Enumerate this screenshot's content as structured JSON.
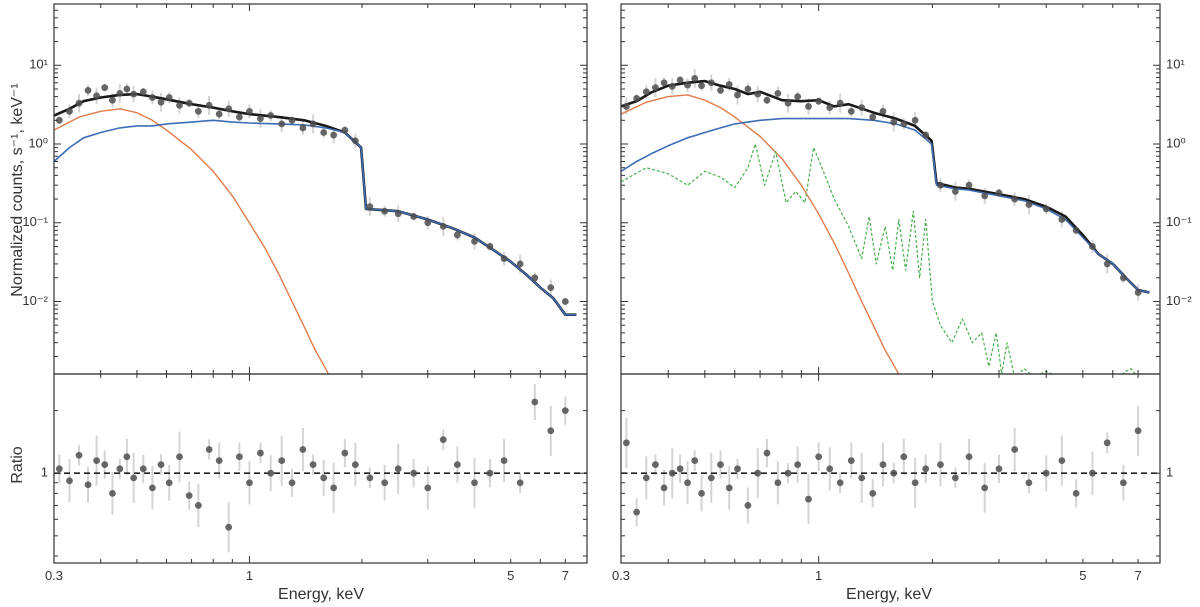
{
  "figure": {
    "ylabel_main": "Normalized counts, s⁻¹, keV⁻¹",
    "ylabel_ratio": "Ratio",
    "xlabel": "Energy, keV"
  },
  "colors": {
    "data_points": "#4d4d4d",
    "error_bars": "#d4d4d4",
    "total_model": "#1a1a1a",
    "soft_component": "#e07b4a",
    "hard_component": "#3f6db5",
    "line_component": "#4caf50",
    "reference_line": "#222222"
  },
  "chart_data": [
    {
      "type": "scatter",
      "panel": "left-spectrum",
      "xscale": "log",
      "yscale": "log",
      "xlim": [
        0.3,
        8.0
      ],
      "ylim": [
        0.0012,
        60
      ],
      "yticks": [
        0.01,
        0.1,
        1,
        10
      ],
      "ytick_labels": [
        "10⁻²",
        "10⁻¹",
        "10⁰",
        "10¹"
      ],
      "ylabel": "Normalized counts, s⁻¹, keV⁻¹",
      "series": [
        {
          "name": "total model",
          "kind": "line",
          "role": "total",
          "x": [
            0.3,
            0.33,
            0.36,
            0.4,
            0.45,
            0.5,
            0.55,
            0.6,
            0.7,
            0.8,
            0.9,
            1.0,
            1.2,
            1.4,
            1.6,
            1.8,
            1.99,
            2.05,
            2.5,
            3.0,
            3.5,
            4.0,
            4.5,
            5.0,
            5.5,
            6.0,
            6.5,
            7.0,
            7.5
          ],
          "y": [
            2.3,
            2.8,
            3.5,
            3.9,
            4.2,
            4.3,
            4.0,
            3.7,
            3.2,
            2.9,
            2.6,
            2.4,
            2.2,
            2.0,
            1.7,
            1.4,
            0.9,
            0.15,
            0.14,
            0.11,
            0.085,
            0.065,
            0.045,
            0.032,
            0.022,
            0.015,
            0.011,
            0.0068,
            0.0068
          ]
        },
        {
          "name": "soft component",
          "kind": "line",
          "role": "soft",
          "x": [
            0.3,
            0.35,
            0.4,
            0.45,
            0.5,
            0.55,
            0.6,
            0.7,
            0.8,
            0.9,
            1.0,
            1.1,
            1.2,
            1.3,
            1.4,
            1.5,
            1.6,
            1.7
          ],
          "y": [
            1.5,
            2.2,
            2.6,
            2.8,
            2.5,
            2.0,
            1.5,
            0.85,
            0.45,
            0.22,
            0.1,
            0.048,
            0.022,
            0.01,
            0.0048,
            0.0024,
            0.0014,
            0.0008
          ]
        },
        {
          "name": "hard component",
          "kind": "line",
          "role": "hard",
          "x": [
            0.3,
            0.33,
            0.36,
            0.4,
            0.45,
            0.5,
            0.55,
            0.6,
            0.7,
            0.8,
            0.9,
            1.0,
            1.2,
            1.4,
            1.6,
            1.8,
            1.99,
            2.05,
            2.5,
            3.0,
            3.5,
            4.0,
            4.5,
            5.0,
            5.5,
            6.0,
            6.5,
            7.0,
            7.5
          ],
          "y": [
            0.6,
            0.9,
            1.2,
            1.4,
            1.6,
            1.7,
            1.7,
            1.8,
            1.9,
            2.0,
            1.9,
            1.85,
            1.8,
            1.75,
            1.6,
            1.4,
            0.9,
            0.15,
            0.14,
            0.11,
            0.085,
            0.065,
            0.045,
            0.032,
            0.022,
            0.015,
            0.011,
            0.0068,
            0.0068
          ]
        },
        {
          "name": "observed counts",
          "kind": "points",
          "x": [
            0.31,
            0.33,
            0.35,
            0.37,
            0.39,
            0.41,
            0.43,
            0.45,
            0.47,
            0.49,
            0.52,
            0.55,
            0.58,
            0.61,
            0.65,
            0.69,
            0.73,
            0.78,
            0.83,
            0.88,
            0.94,
            1.0,
            1.07,
            1.14,
            1.22,
            1.3,
            1.39,
            1.48,
            1.58,
            1.68,
            1.8,
            1.92,
            2.1,
            2.3,
            2.5,
            2.75,
            3.0,
            3.3,
            3.6,
            4.0,
            4.4,
            4.8,
            5.3,
            5.8,
            6.4,
            7.0
          ],
          "y": [
            2.0,
            2.6,
            3.3,
            4.8,
            4.1,
            5.2,
            3.6,
            4.4,
            5.0,
            4.3,
            4.6,
            3.9,
            3.4,
            3.9,
            3.1,
            3.3,
            2.6,
            3.1,
            2.4,
            2.8,
            2.2,
            2.6,
            2.1,
            2.3,
            1.8,
            2.0,
            1.6,
            1.8,
            1.4,
            1.3,
            1.5,
            1.1,
            0.16,
            0.14,
            0.13,
            0.12,
            0.1,
            0.09,
            0.07,
            0.058,
            0.05,
            0.035,
            0.03,
            0.02,
            0.015,
            0.01
          ]
        }
      ]
    },
    {
      "type": "scatter",
      "panel": "right-spectrum",
      "xscale": "log",
      "yscale": "log",
      "xlim": [
        0.3,
        8.0
      ],
      "ylim": [
        0.0012,
        60
      ],
      "yticks": [
        0.01,
        0.1,
        1,
        10
      ],
      "ytick_labels": [
        "10⁻²",
        "10⁻¹",
        "10⁰",
        "10¹"
      ],
      "series": [
        {
          "name": "total model",
          "kind": "line",
          "role": "total",
          "x": [
            0.3,
            0.33,
            0.36,
            0.4,
            0.45,
            0.5,
            0.55,
            0.6,
            0.65,
            0.7,
            0.8,
            0.9,
            1.0,
            1.1,
            1.2,
            1.4,
            1.6,
            1.8,
            1.99,
            2.05,
            2.3,
            2.5,
            3.0,
            3.5,
            4.0,
            4.5,
            5.0,
            5.5,
            6.0,
            6.5,
            7.0,
            7.5
          ],
          "y": [
            3.0,
            3.5,
            4.5,
            5.5,
            6.0,
            6.3,
            5.5,
            5.0,
            4.3,
            4.6,
            3.6,
            3.5,
            3.6,
            3.0,
            3.2,
            2.5,
            2.1,
            1.7,
            1.1,
            0.32,
            0.28,
            0.27,
            0.23,
            0.2,
            0.16,
            0.12,
            0.07,
            0.04,
            0.03,
            0.02,
            0.014,
            0.013
          ]
        },
        {
          "name": "soft component",
          "kind": "line",
          "role": "soft",
          "x": [
            0.3,
            0.35,
            0.4,
            0.45,
            0.5,
            0.55,
            0.6,
            0.7,
            0.8,
            0.9,
            1.0,
            1.1,
            1.2,
            1.3,
            1.4,
            1.5,
            1.6,
            1.7
          ],
          "y": [
            2.4,
            3.4,
            4.0,
            4.2,
            3.6,
            2.9,
            2.2,
            1.25,
            0.65,
            0.3,
            0.13,
            0.055,
            0.023,
            0.01,
            0.0048,
            0.0024,
            0.0014,
            0.0008
          ]
        },
        {
          "name": "hard component",
          "kind": "line",
          "role": "hard",
          "x": [
            0.3,
            0.33,
            0.36,
            0.4,
            0.45,
            0.5,
            0.55,
            0.6,
            0.7,
            0.8,
            0.9,
            1.0,
            1.2,
            1.4,
            1.6,
            1.8,
            1.99,
            2.05,
            2.3,
            2.5,
            3.0,
            3.5,
            4.0,
            4.5,
            5.0,
            5.5,
            6.0,
            6.5,
            7.0,
            7.5
          ],
          "y": [
            0.45,
            0.6,
            0.75,
            0.95,
            1.2,
            1.4,
            1.6,
            1.8,
            2.0,
            2.1,
            2.1,
            2.1,
            2.1,
            2.0,
            1.8,
            1.5,
            1.0,
            0.3,
            0.27,
            0.26,
            0.22,
            0.19,
            0.15,
            0.11,
            0.065,
            0.04,
            0.03,
            0.02,
            0.014,
            0.013
          ]
        },
        {
          "name": "line emission component",
          "kind": "line",
          "role": "lines",
          "x": [
            0.3,
            0.35,
            0.4,
            0.45,
            0.5,
            0.55,
            0.6,
            0.65,
            0.68,
            0.72,
            0.77,
            0.82,
            0.87,
            0.92,
            0.97,
            1.02,
            1.1,
            1.2,
            1.3,
            1.36,
            1.42,
            1.5,
            1.57,
            1.63,
            1.7,
            1.78,
            1.85,
            1.92,
            2.0,
            2.1,
            2.25,
            2.4,
            2.55,
            2.7,
            2.82,
            2.95,
            3.05,
            3.15,
            3.3,
            3.5,
            3.7,
            4.0,
            4.3,
            4.7,
            5.2,
            5.7,
            6.2,
            6.5,
            6.7,
            7.0
          ],
          "y": [
            0.33,
            0.5,
            0.42,
            0.3,
            0.45,
            0.38,
            0.28,
            0.5,
            1.0,
            0.3,
            0.8,
            0.18,
            0.25,
            0.18,
            0.9,
            0.5,
            0.2,
            0.09,
            0.035,
            0.12,
            0.03,
            0.09,
            0.025,
            0.11,
            0.025,
            0.14,
            0.02,
            0.11,
            0.01,
            0.005,
            0.003,
            0.006,
            0.003,
            0.004,
            0.0015,
            0.004,
            0.0012,
            0.003,
            0.0011,
            0.0014,
            0.0011,
            0.0013,
            0.0011,
            0.0012,
            0.0011,
            0.0012,
            0.0011,
            0.0013,
            0.0014,
            0.0011
          ]
        },
        {
          "name": "observed counts",
          "kind": "points",
          "x": [
            0.31,
            0.33,
            0.35,
            0.37,
            0.39,
            0.41,
            0.43,
            0.45,
            0.47,
            0.49,
            0.52,
            0.55,
            0.58,
            0.61,
            0.65,
            0.69,
            0.73,
            0.78,
            0.83,
            0.88,
            0.94,
            1.0,
            1.07,
            1.14,
            1.22,
            1.3,
            1.39,
            1.48,
            1.58,
            1.68,
            1.8,
            1.92,
            2.1,
            2.3,
            2.5,
            2.75,
            3.0,
            3.3,
            3.6,
            4.0,
            4.4,
            4.8,
            5.3,
            5.8,
            6.4,
            7.0
          ],
          "y": [
            3.0,
            3.8,
            4.6,
            5.2,
            6.0,
            5.4,
            6.5,
            5.6,
            6.8,
            5.5,
            6.0,
            4.8,
            5.7,
            4.2,
            5.0,
            4.3,
            3.6,
            4.4,
            3.3,
            4.0,
            3.0,
            3.5,
            2.9,
            3.3,
            2.6,
            2.9,
            2.2,
            2.6,
            1.9,
            1.8,
            2.0,
            1.3,
            0.3,
            0.25,
            0.3,
            0.22,
            0.24,
            0.2,
            0.17,
            0.15,
            0.11,
            0.08,
            0.05,
            0.03,
            0.02,
            0.013
          ]
        }
      ]
    },
    {
      "type": "scatter",
      "panel": "left-ratio",
      "xscale": "log",
      "yscale": "log",
      "xlim": [
        0.3,
        8.0
      ],
      "ylim": [
        0.37,
        3.0
      ],
      "yticks": [
        1
      ],
      "ytick_labels": [
        "1"
      ],
      "xticks": [
        0.3,
        1,
        5,
        7
      ],
      "xtick_labels": [
        "0.3",
        "1",
        "5",
        "7"
      ],
      "reference_line": 1,
      "series": [
        {
          "name": "data/model ratio",
          "kind": "points",
          "x": [
            0.31,
            0.33,
            0.35,
            0.37,
            0.39,
            0.41,
            0.43,
            0.45,
            0.47,
            0.49,
            0.52,
            0.55,
            0.58,
            0.61,
            0.65,
            0.69,
            0.73,
            0.78,
            0.83,
            0.88,
            0.94,
            1.0,
            1.07,
            1.14,
            1.22,
            1.3,
            1.39,
            1.48,
            1.58,
            1.68,
            1.8,
            1.92,
            2.1,
            2.3,
            2.5,
            2.75,
            3.0,
            3.3,
            3.6,
            4.0,
            4.4,
            4.8,
            5.3,
            5.8,
            6.4,
            7.0
          ],
          "y": [
            1.05,
            0.92,
            1.22,
            0.88,
            1.15,
            1.1,
            0.8,
            1.05,
            1.2,
            0.95,
            1.05,
            0.85,
            1.1,
            0.9,
            1.2,
            0.78,
            0.7,
            1.3,
            1.15,
            0.55,
            1.2,
            0.9,
            1.25,
            1.0,
            1.15,
            0.9,
            1.3,
            1.1,
            0.95,
            0.85,
            1.25,
            1.1,
            0.95,
            0.9,
            1.05,
            1.0,
            0.85,
            1.45,
            1.1,
            0.9,
            1.0,
            1.15,
            0.9,
            2.2,
            1.6,
            2.0
          ]
        }
      ]
    },
    {
      "type": "scatter",
      "panel": "right-ratio",
      "xscale": "log",
      "yscale": "log",
      "xlim": [
        0.3,
        8.0
      ],
      "ylim": [
        0.37,
        3.0
      ],
      "yticks": [
        1
      ],
      "ytick_labels": [
        "1"
      ],
      "xticks": [
        0.3,
        1,
        5,
        7
      ],
      "xtick_labels": [
        "0.3",
        "1",
        "5",
        "7"
      ],
      "reference_line": 1,
      "series": [
        {
          "name": "data/model ratio",
          "kind": "points",
          "x": [
            0.31,
            0.33,
            0.35,
            0.37,
            0.39,
            0.41,
            0.43,
            0.45,
            0.47,
            0.49,
            0.52,
            0.55,
            0.58,
            0.61,
            0.65,
            0.69,
            0.73,
            0.78,
            0.83,
            0.88,
            0.94,
            1.0,
            1.07,
            1.14,
            1.22,
            1.3,
            1.39,
            1.48,
            1.58,
            1.68,
            1.8,
            1.92,
            2.1,
            2.3,
            2.5,
            2.75,
            3.0,
            3.3,
            3.6,
            4.0,
            4.4,
            4.8,
            5.3,
            5.8,
            6.4,
            7.0
          ],
          "y": [
            1.4,
            0.65,
            0.95,
            1.1,
            0.85,
            1.0,
            1.05,
            0.9,
            1.15,
            0.8,
            0.95,
            1.1,
            0.85,
            1.05,
            0.7,
            1.0,
            1.25,
            0.9,
            1.0,
            1.1,
            0.75,
            1.2,
            1.05,
            0.9,
            1.15,
            0.95,
            0.8,
            1.1,
            1.0,
            1.2,
            0.9,
            1.05,
            1.1,
            0.95,
            1.2,
            0.85,
            1.05,
            1.3,
            0.9,
            1.0,
            1.15,
            0.8,
            1.0,
            1.4,
            0.9,
            1.6
          ]
        }
      ]
    }
  ]
}
